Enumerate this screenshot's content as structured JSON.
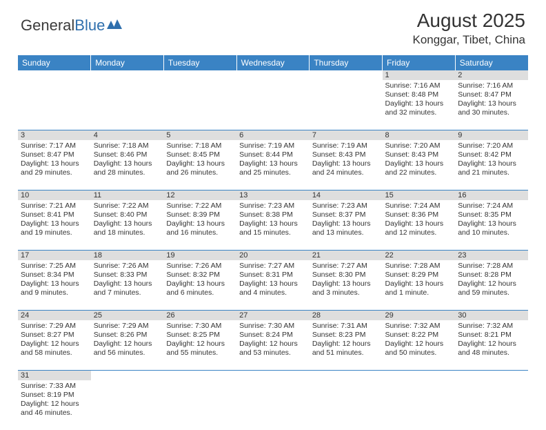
{
  "logo": {
    "text1": "General",
    "text2": "Blue"
  },
  "title": "August 2025",
  "location": "Konggar, Tibet, China",
  "colors": {
    "header_bg": "#3a83c4",
    "header_text": "#ffffff",
    "daynum_bg": "#dedede",
    "row_border": "#3a83c4",
    "text": "#333333",
    "background": "#ffffff"
  },
  "days_of_week": [
    "Sunday",
    "Monday",
    "Tuesday",
    "Wednesday",
    "Thursday",
    "Friday",
    "Saturday"
  ],
  "weeks": [
    [
      null,
      null,
      null,
      null,
      null,
      {
        "d": "1",
        "sr": "Sunrise: 7:16 AM",
        "ss": "Sunset: 8:48 PM",
        "dl1": "Daylight: 13 hours",
        "dl2": "and 32 minutes."
      },
      {
        "d": "2",
        "sr": "Sunrise: 7:16 AM",
        "ss": "Sunset: 8:47 PM",
        "dl1": "Daylight: 13 hours",
        "dl2": "and 30 minutes."
      }
    ],
    [
      {
        "d": "3",
        "sr": "Sunrise: 7:17 AM",
        "ss": "Sunset: 8:47 PM",
        "dl1": "Daylight: 13 hours",
        "dl2": "and 29 minutes."
      },
      {
        "d": "4",
        "sr": "Sunrise: 7:18 AM",
        "ss": "Sunset: 8:46 PM",
        "dl1": "Daylight: 13 hours",
        "dl2": "and 28 minutes."
      },
      {
        "d": "5",
        "sr": "Sunrise: 7:18 AM",
        "ss": "Sunset: 8:45 PM",
        "dl1": "Daylight: 13 hours",
        "dl2": "and 26 minutes."
      },
      {
        "d": "6",
        "sr": "Sunrise: 7:19 AM",
        "ss": "Sunset: 8:44 PM",
        "dl1": "Daylight: 13 hours",
        "dl2": "and 25 minutes."
      },
      {
        "d": "7",
        "sr": "Sunrise: 7:19 AM",
        "ss": "Sunset: 8:43 PM",
        "dl1": "Daylight: 13 hours",
        "dl2": "and 24 minutes."
      },
      {
        "d": "8",
        "sr": "Sunrise: 7:20 AM",
        "ss": "Sunset: 8:43 PM",
        "dl1": "Daylight: 13 hours",
        "dl2": "and 22 minutes."
      },
      {
        "d": "9",
        "sr": "Sunrise: 7:20 AM",
        "ss": "Sunset: 8:42 PM",
        "dl1": "Daylight: 13 hours",
        "dl2": "and 21 minutes."
      }
    ],
    [
      {
        "d": "10",
        "sr": "Sunrise: 7:21 AM",
        "ss": "Sunset: 8:41 PM",
        "dl1": "Daylight: 13 hours",
        "dl2": "and 19 minutes."
      },
      {
        "d": "11",
        "sr": "Sunrise: 7:22 AM",
        "ss": "Sunset: 8:40 PM",
        "dl1": "Daylight: 13 hours",
        "dl2": "and 18 minutes."
      },
      {
        "d": "12",
        "sr": "Sunrise: 7:22 AM",
        "ss": "Sunset: 8:39 PM",
        "dl1": "Daylight: 13 hours",
        "dl2": "and 16 minutes."
      },
      {
        "d": "13",
        "sr": "Sunrise: 7:23 AM",
        "ss": "Sunset: 8:38 PM",
        "dl1": "Daylight: 13 hours",
        "dl2": "and 15 minutes."
      },
      {
        "d": "14",
        "sr": "Sunrise: 7:23 AM",
        "ss": "Sunset: 8:37 PM",
        "dl1": "Daylight: 13 hours",
        "dl2": "and 13 minutes."
      },
      {
        "d": "15",
        "sr": "Sunrise: 7:24 AM",
        "ss": "Sunset: 8:36 PM",
        "dl1": "Daylight: 13 hours",
        "dl2": "and 12 minutes."
      },
      {
        "d": "16",
        "sr": "Sunrise: 7:24 AM",
        "ss": "Sunset: 8:35 PM",
        "dl1": "Daylight: 13 hours",
        "dl2": "and 10 minutes."
      }
    ],
    [
      {
        "d": "17",
        "sr": "Sunrise: 7:25 AM",
        "ss": "Sunset: 8:34 PM",
        "dl1": "Daylight: 13 hours",
        "dl2": "and 9 minutes."
      },
      {
        "d": "18",
        "sr": "Sunrise: 7:26 AM",
        "ss": "Sunset: 8:33 PM",
        "dl1": "Daylight: 13 hours",
        "dl2": "and 7 minutes."
      },
      {
        "d": "19",
        "sr": "Sunrise: 7:26 AM",
        "ss": "Sunset: 8:32 PM",
        "dl1": "Daylight: 13 hours",
        "dl2": "and 6 minutes."
      },
      {
        "d": "20",
        "sr": "Sunrise: 7:27 AM",
        "ss": "Sunset: 8:31 PM",
        "dl1": "Daylight: 13 hours",
        "dl2": "and 4 minutes."
      },
      {
        "d": "21",
        "sr": "Sunrise: 7:27 AM",
        "ss": "Sunset: 8:30 PM",
        "dl1": "Daylight: 13 hours",
        "dl2": "and 3 minutes."
      },
      {
        "d": "22",
        "sr": "Sunrise: 7:28 AM",
        "ss": "Sunset: 8:29 PM",
        "dl1": "Daylight: 13 hours",
        "dl2": "and 1 minute."
      },
      {
        "d": "23",
        "sr": "Sunrise: 7:28 AM",
        "ss": "Sunset: 8:28 PM",
        "dl1": "Daylight: 12 hours",
        "dl2": "and 59 minutes."
      }
    ],
    [
      {
        "d": "24",
        "sr": "Sunrise: 7:29 AM",
        "ss": "Sunset: 8:27 PM",
        "dl1": "Daylight: 12 hours",
        "dl2": "and 58 minutes."
      },
      {
        "d": "25",
        "sr": "Sunrise: 7:29 AM",
        "ss": "Sunset: 8:26 PM",
        "dl1": "Daylight: 12 hours",
        "dl2": "and 56 minutes."
      },
      {
        "d": "26",
        "sr": "Sunrise: 7:30 AM",
        "ss": "Sunset: 8:25 PM",
        "dl1": "Daylight: 12 hours",
        "dl2": "and 55 minutes."
      },
      {
        "d": "27",
        "sr": "Sunrise: 7:30 AM",
        "ss": "Sunset: 8:24 PM",
        "dl1": "Daylight: 12 hours",
        "dl2": "and 53 minutes."
      },
      {
        "d": "28",
        "sr": "Sunrise: 7:31 AM",
        "ss": "Sunset: 8:23 PM",
        "dl1": "Daylight: 12 hours",
        "dl2": "and 51 minutes."
      },
      {
        "d": "29",
        "sr": "Sunrise: 7:32 AM",
        "ss": "Sunset: 8:22 PM",
        "dl1": "Daylight: 12 hours",
        "dl2": "and 50 minutes."
      },
      {
        "d": "30",
        "sr": "Sunrise: 7:32 AM",
        "ss": "Sunset: 8:21 PM",
        "dl1": "Daylight: 12 hours",
        "dl2": "and 48 minutes."
      }
    ],
    [
      {
        "d": "31",
        "sr": "Sunrise: 7:33 AM",
        "ss": "Sunset: 8:19 PM",
        "dl1": "Daylight: 12 hours",
        "dl2": "and 46 minutes."
      },
      null,
      null,
      null,
      null,
      null,
      null
    ]
  ]
}
